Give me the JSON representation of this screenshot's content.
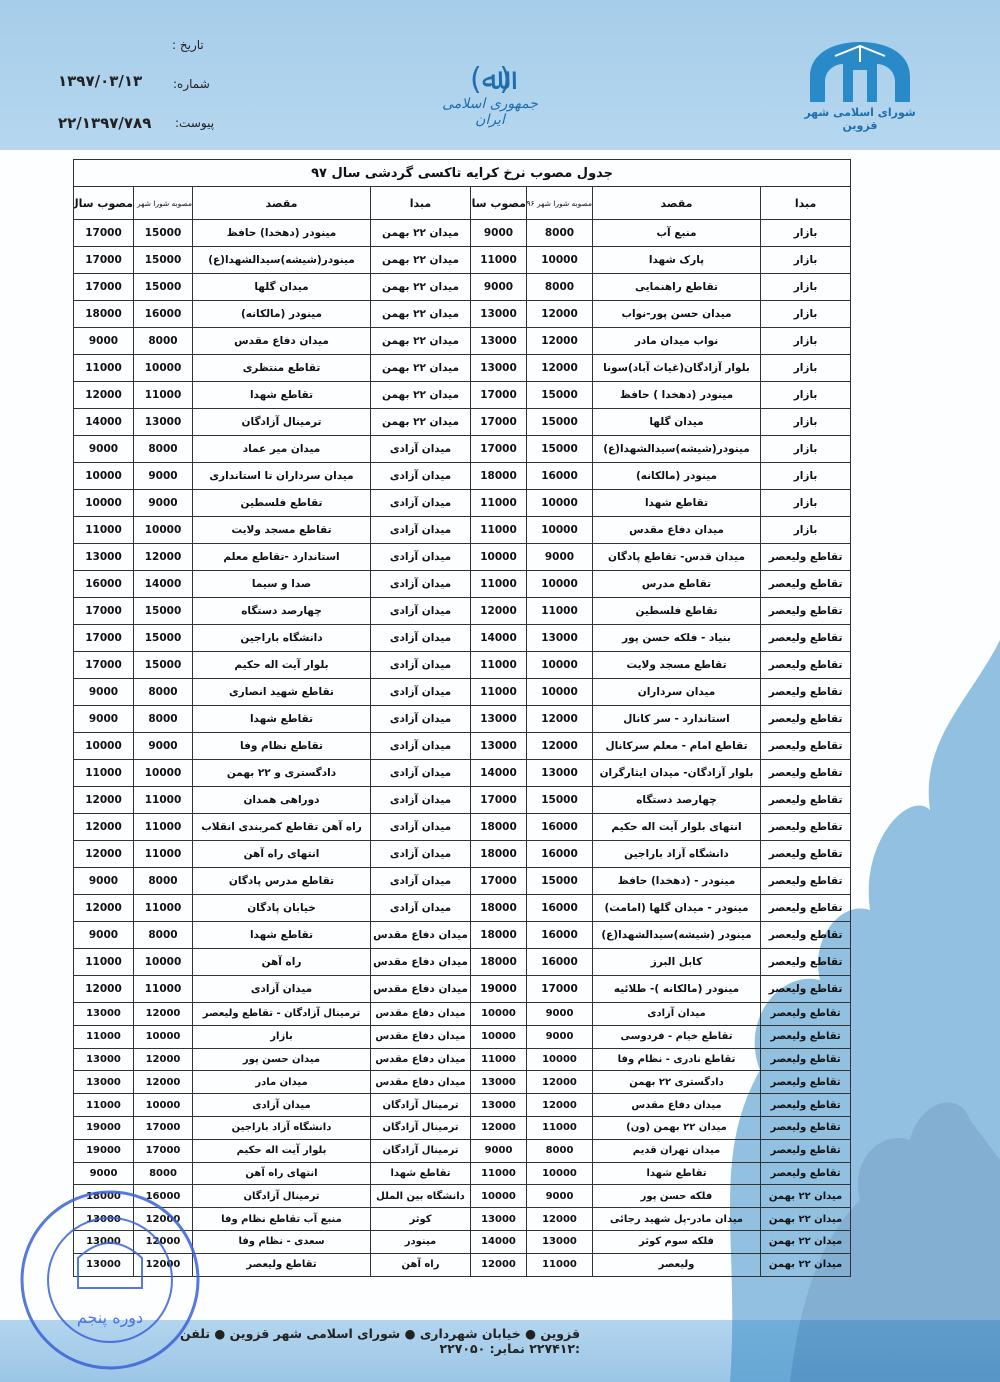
{
  "header": {
    "date_label": "تاریخ :",
    "number_label": "شماره:",
    "number_value": "۱۳۹۷/۰۳/۱۳",
    "attachment_label": "پیوست:",
    "attachment_value": "۲۲/۱۳۹۷/۷۸۹",
    "emblem": "(ﷲ)",
    "country": "جمهوری اسلامی ایران",
    "org": "شورای اسلامی شهر قزوین"
  },
  "colors": {
    "brand": "#1f6fae",
    "band": "#a6cdea"
  },
  "table": {
    "title": "جدول مصوب نرخ کرایه تاکسی گردشی سال ۹۷",
    "headers": {
      "origin": "مبدا",
      "destination": "مقصد",
      "council96": "مصوبه شورا شهر ۹۶",
      "approved97": "مصوب سال ۹۷"
    },
    "rows": [
      [
        "بازار",
        "منبع آب",
        "8000",
        "9000",
        "میدان ۲۲ بهمن",
        "مینودر (دهخدا) حافظ",
        "15000",
        "17000"
      ],
      [
        "بازار",
        "پارک شهدا",
        "10000",
        "11000",
        "میدان ۲۲ بهمن",
        "مینودر(شیشه)سیدالشهدا(ع)",
        "15000",
        "17000"
      ],
      [
        "بازار",
        "تقاطع راهنمایی",
        "8000",
        "9000",
        "میدان ۲۲ بهمن",
        "میدان گلها",
        "15000",
        "17000"
      ],
      [
        "بازار",
        "میدان حسن پور-نواب",
        "12000",
        "13000",
        "میدان ۲۲ بهمن",
        "مینودر (مالکانه)",
        "16000",
        "18000"
      ],
      [
        "بازار",
        "نواب میدان مادر",
        "12000",
        "13000",
        "میدان ۲۲ بهمن",
        "میدان دفاع مقدس",
        "8000",
        "9000"
      ],
      [
        "بازار",
        "بلوار آزادگان(غیاث آباد)سونا",
        "12000",
        "13000",
        "میدان ۲۲ بهمن",
        "تقاطع منتظری",
        "10000",
        "11000"
      ],
      [
        "بازار",
        "مینودر (دهخدا ) حافظ",
        "15000",
        "17000",
        "میدان ۲۲ بهمن",
        "تقاطع شهدا",
        "11000",
        "12000"
      ],
      [
        "بازار",
        "میدان گلها",
        "15000",
        "17000",
        "میدان ۲۲ بهمن",
        "ترمینال آزادگان",
        "13000",
        "14000"
      ],
      [
        "بازار",
        "مینودر(شیشه)سیدالشهدا(ع)",
        "15000",
        "17000",
        "میدان آزادی",
        "میدان میر عماد",
        "8000",
        "9000"
      ],
      [
        "بازار",
        "مینودر (مالکانه)",
        "16000",
        "18000",
        "میدان آزادی",
        "میدان سرداران تا استانداری",
        "9000",
        "10000"
      ],
      [
        "بازار",
        "تقاطع شهدا",
        "10000",
        "11000",
        "میدان آزادی",
        "تقاطع فلسطین",
        "9000",
        "10000"
      ],
      [
        "بازار",
        "میدان دفاع مقدس",
        "10000",
        "11000",
        "میدان آزادی",
        "تقاطع مسجد ولایت",
        "10000",
        "11000"
      ],
      [
        "تقاطع ولیعصر",
        "میدان قدس- تقاطع پادگان",
        "9000",
        "10000",
        "میدان آزادی",
        "استاندارد -تقاطع معلم",
        "12000",
        "13000"
      ],
      [
        "تقاطع ولیعصر",
        "تقاطع مدرس",
        "10000",
        "11000",
        "میدان آزادی",
        "صدا و سیما",
        "14000",
        "16000"
      ],
      [
        "تقاطع ولیعصر",
        "تقاطع فلسطین",
        "11000",
        "12000",
        "میدان آزادی",
        "چهارصد دستگاه",
        "15000",
        "17000"
      ],
      [
        "تقاطع ولیعصر",
        "بنیاد - فلکه حسن پور",
        "13000",
        "14000",
        "میدان آزادی",
        "دانشگاه باراجین",
        "15000",
        "17000"
      ],
      [
        "تقاطع ولیعصر",
        "تقاطع مسجد ولایت",
        "10000",
        "11000",
        "میدان آزادی",
        "بلوار آیت اله حکیم",
        "15000",
        "17000"
      ],
      [
        "تقاطع ولیعصر",
        "میدان سرداران",
        "10000",
        "11000",
        "میدان آزادی",
        "تقاطع شهید انصاری",
        "8000",
        "9000"
      ],
      [
        "تقاطع ولیعصر",
        "استاندارد - سر کانال",
        "12000",
        "13000",
        "میدان آزادی",
        "تقاطع شهدا",
        "8000",
        "9000"
      ],
      [
        "تقاطع ولیعصر",
        "تقاطع امام - معلم سرکانال",
        "12000",
        "13000",
        "میدان آزادی",
        "تقاطع نظام وفا",
        "9000",
        "10000"
      ],
      [
        "تقاطع ولیعصر",
        "بلوار آزادگان- میدان ایثارگران",
        "13000",
        "14000",
        "میدان آزادی",
        "دادگستری و ۲۲ بهمن",
        "10000",
        "11000"
      ],
      [
        "تقاطع ولیعصر",
        "چهارصد دستگاه",
        "15000",
        "17000",
        "میدان آزادی",
        "دوراهی همدان",
        "11000",
        "12000"
      ],
      [
        "تقاطع ولیعصر",
        "انتهای بلوار آیت اله حکیم",
        "16000",
        "18000",
        "میدان آزادی",
        "راه آهن تقاطع کمربندی انقلاب",
        "11000",
        "12000"
      ],
      [
        "تقاطع ولیعصر",
        "دانشگاه آزاد باراجین",
        "16000",
        "18000",
        "میدان آزادی",
        "انتهای راه آهن",
        "11000",
        "12000"
      ],
      [
        "تقاطع ولیعصر",
        "مینودر - (دهخدا) حافظ",
        "15000",
        "17000",
        "میدان آزادی",
        "تقاطع مدرس پادگان",
        "8000",
        "9000"
      ],
      [
        "تقاطع ولیعصر",
        "مینودر - میدان گلها (امامت)",
        "16000",
        "18000",
        "میدان آزادی",
        "خیابان پادگان",
        "11000",
        "12000"
      ],
      [
        "تقاطع ولیعصر",
        "مینودر (شیشه)سیدالشهدا(ع)",
        "16000",
        "18000",
        "میدان دفاع مقدس",
        "تقاطع شهدا",
        "8000",
        "9000"
      ],
      [
        "تقاطع ولیعصر",
        "کابل البرز",
        "16000",
        "18000",
        "میدان دفاع مقدس",
        "راه آهن",
        "10000",
        "11000"
      ],
      [
        "تقاطع ولیعصر",
        "مینودر (مالکانه )- طلائیه",
        "17000",
        "19000",
        "میدان دفاع مقدس",
        "میدان آزادی",
        "11000",
        "12000"
      ],
      [
        "تقاطع ولیعصر",
        "میدان آزادی",
        "9000",
        "10000",
        "میدان دفاع مقدس",
        "ترمینال آزادگان - تقاطع ولیعصر",
        "12000",
        "13000"
      ],
      [
        "تقاطع ولیعصر",
        "تقاطع خیام - فردوسی",
        "9000",
        "10000",
        "میدان دفاع مقدس",
        "بازار",
        "10000",
        "11000"
      ],
      [
        "تقاطع ولیعصر",
        "تقاطع نادری - نظام وفا",
        "10000",
        "11000",
        "میدان دفاع مقدس",
        "میدان حسن پور",
        "12000",
        "13000"
      ],
      [
        "تقاطع ولیعصر",
        "دادگستری ۲۲ بهمن",
        "12000",
        "13000",
        "میدان دفاع مقدس",
        "میدان مادر",
        "12000",
        "13000"
      ],
      [
        "تقاطع ولیعصر",
        "میدان دفاع مقدس",
        "12000",
        "13000",
        "ترمینال آزادگان",
        "میدان آزادی",
        "10000",
        "11000"
      ],
      [
        "تقاطع ولیعصر",
        "میدان ۲۲ بهمن (ون)",
        "11000",
        "12000",
        "ترمینال آزادگان",
        "دانشگاه آزاد باراجین",
        "17000",
        "19000"
      ],
      [
        "تقاطع ولیعصر",
        "میدان تهران قدیم",
        "8000",
        "9000",
        "ترمینال آزادگان",
        "بلوار آیت اله حکیم",
        "17000",
        "19000"
      ],
      [
        "تقاطع ولیعصر",
        "تقاطع شهدا",
        "10000",
        "11000",
        "تقاطع شهدا",
        "انتهای راه آهن",
        "8000",
        "9000"
      ],
      [
        "میدان ۲۲ بهمن",
        "فلکه حسن پور",
        "9000",
        "10000",
        "دانشگاه بین الملل",
        "ترمینال آزادگان",
        "16000",
        "18000"
      ],
      [
        "میدان ۲۲ بهمن",
        "میدان مادر-پل شهید رجائی",
        "12000",
        "13000",
        "کوثر",
        "منبع آب تقاطع نظام وفا",
        "12000",
        "13000"
      ],
      [
        "میدان ۲۲ بهمن",
        "فلکه سوم کوثر",
        "13000",
        "14000",
        "مینودر",
        "سعدی - نظام وفا",
        "12000",
        "13000"
      ],
      [
        "میدان ۲۲ بهمن",
        "ولیعصر",
        "11000",
        "12000",
        "راه آهن",
        "تقاطع ولیعصر",
        "12000",
        "13000"
      ]
    ]
  },
  "stamp": {
    "text": "دوره پنجم"
  },
  "footer": {
    "text": "قزوین ● خیابان شهرداری ● شورای اسلامی شهر قزوین ● تلفن :۲۲۷۴۱۲ نمابر: ۲۲۷۰۵۰"
  }
}
